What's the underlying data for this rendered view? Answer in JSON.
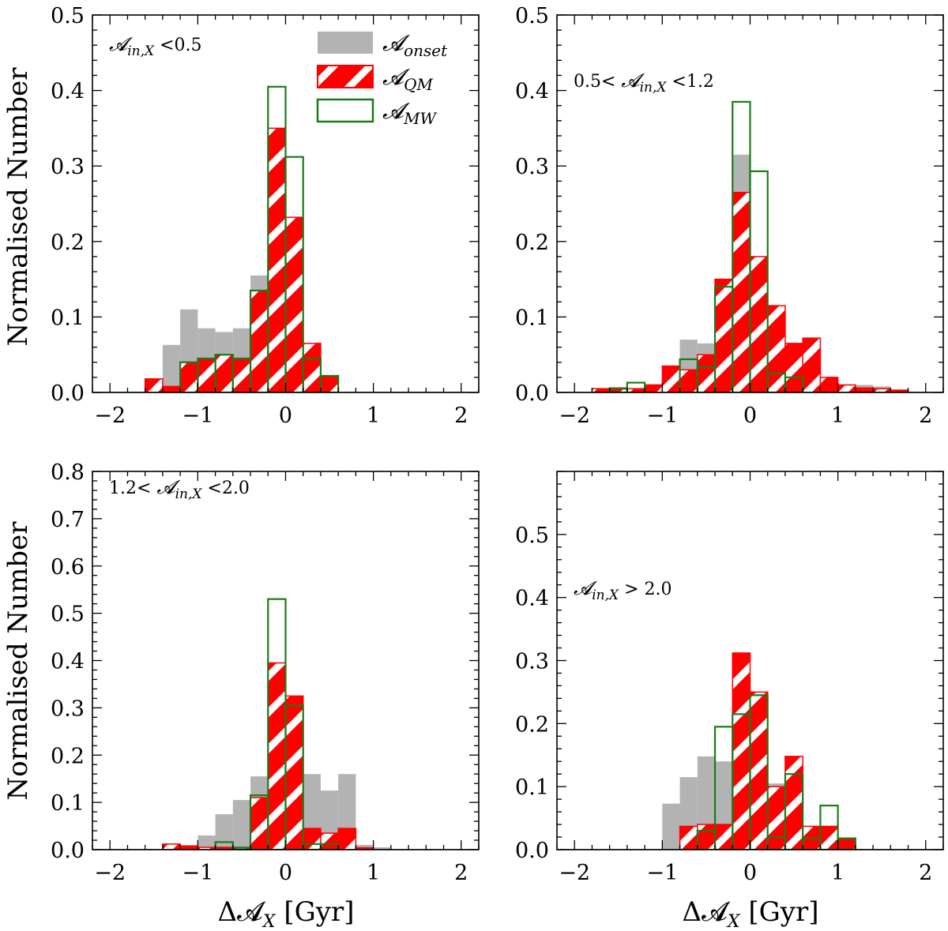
{
  "figure": {
    "ylabel": "Normalised Number",
    "xlabel": "ΔA_X [Gyr]",
    "xlabel_main": "Δ𝓐",
    "xlabel_sub": "X",
    "xlabel_unit": " [Gyr]"
  },
  "legend": {
    "entries": [
      {
        "key": "onset",
        "base": "𝓐",
        "sub": "onset",
        "color": "#b3b3b3"
      },
      {
        "key": "qm",
        "base": "𝓐",
        "sub": "QM",
        "color": "#ff0000"
      },
      {
        "key": "mw",
        "base": "𝓐",
        "sub": "MW",
        "color": "#1a7a1a"
      }
    ]
  },
  "colors": {
    "onset": "#b3b3b3",
    "qm": "#ff0000",
    "mw": "#1a7a1a"
  },
  "chart_data": [
    {
      "type": "histogram",
      "panel": "top-left",
      "annotation": "𝓐in,X <0.5",
      "annotation_parts": {
        "pre": "",
        "base": "𝓐",
        "sub": "in,X",
        "post": " <0.5"
      },
      "xlim": [
        -2.2,
        2.2
      ],
      "ylim": [
        0,
        0.5
      ],
      "xticks": [
        -2,
        -1,
        0,
        1,
        2
      ],
      "yticks": [
        0.0,
        0.1,
        0.2,
        0.3,
        0.4,
        0.5
      ],
      "bins": [
        -1.6,
        -1.4,
        -1.2,
        -1.0,
        -0.8,
        -0.6,
        -0.4,
        -0.2,
        0.0,
        0.2,
        0.4,
        0.6
      ],
      "series": [
        {
          "name": "onset",
          "values": [
            0.005,
            0.063,
            0.11,
            0.085,
            0.08,
            0.085,
            0.155,
            0.34,
            0.23,
            0.06,
            0.02
          ]
        },
        {
          "name": "qm",
          "values": [
            0.018,
            0.008,
            0.04,
            0.045,
            0.05,
            0.045,
            0.135,
            0.35,
            0.232,
            0.065,
            0.022
          ]
        },
        {
          "name": "mw",
          "values": [
            0.0,
            0.0,
            0.04,
            0.045,
            0.05,
            0.045,
            0.135,
            0.405,
            0.312,
            0.045,
            0.022
          ]
        }
      ]
    },
    {
      "type": "histogram",
      "panel": "top-right",
      "annotation": "0.5< 𝓐in,X <1.2",
      "annotation_parts": {
        "pre": "0.5< ",
        "base": "𝓐",
        "sub": "in,X",
        "post": " <1.2"
      },
      "xlim": [
        -2.2,
        2.2
      ],
      "ylim": [
        0,
        0.5
      ],
      "xticks": [
        -2,
        -1,
        0,
        1,
        2
      ],
      "yticks": [
        0.0,
        0.1,
        0.2,
        0.3,
        0.4,
        0.5
      ],
      "bins": [
        -2.0,
        -1.8,
        -1.6,
        -1.4,
        -1.2,
        -1.0,
        -0.8,
        -0.6,
        -0.4,
        -0.2,
        0.0,
        0.2,
        0.4,
        0.6,
        0.8,
        1.0,
        1.2,
        1.4,
        1.6,
        1.8,
        2.0
      ],
      "series": [
        {
          "name": "onset",
          "values": [
            0.0,
            0.004,
            0.004,
            0.004,
            0.008,
            0.025,
            0.07,
            0.065,
            0.1,
            0.315,
            0.095,
            0.075,
            0.055,
            0.06,
            0.018,
            0.01,
            0.01,
            0.008,
            0.004,
            0.0
          ]
        },
        {
          "name": "qm",
          "values": [
            0.0,
            0.005,
            0.006,
            0.005,
            0.01,
            0.035,
            0.03,
            0.05,
            0.15,
            0.265,
            0.18,
            0.115,
            0.065,
            0.072,
            0.02,
            0.01,
            0.006,
            0.005,
            0.003,
            0.0
          ]
        },
        {
          "name": "mw",
          "values": [
            0.0,
            0.0,
            0.005,
            0.013,
            0.0,
            0.0,
            0.044,
            0.034,
            0.14,
            0.385,
            0.293,
            0.025,
            0.02,
            0.0,
            0.0,
            0.0,
            0.0,
            0.0,
            0.0,
            0.0
          ]
        }
      ]
    },
    {
      "type": "histogram",
      "panel": "bottom-left",
      "annotation": "1.2< 𝓐in,X <2.0",
      "annotation_parts": {
        "pre": "1.2< ",
        "base": "𝓐",
        "sub": "in,X",
        "post": " <2.0"
      },
      "xlim": [
        -2.2,
        2.2
      ],
      "ylim": [
        0,
        0.8
      ],
      "xticks": [
        -2,
        -1,
        0,
        1,
        2
      ],
      "yticks": [
        0.0,
        0.1,
        0.2,
        0.3,
        0.4,
        0.5,
        0.6,
        0.7,
        0.8
      ],
      "bins": [
        -1.4,
        -1.2,
        -1.0,
        -0.8,
        -0.6,
        -0.4,
        -0.2,
        0.0,
        0.2,
        0.4,
        0.6,
        0.8,
        1.0,
        1.2
      ],
      "series": [
        {
          "name": "onset",
          "values": [
            0.005,
            0.008,
            0.03,
            0.075,
            0.105,
            0.155,
            0.165,
            0.145,
            0.16,
            0.125,
            0.16,
            0.01,
            0.005
          ]
        },
        {
          "name": "qm",
          "values": [
            0.012,
            0.008,
            0.005,
            0.005,
            0.005,
            0.11,
            0.395,
            0.325,
            0.045,
            0.035,
            0.045,
            0.004,
            0.0
          ]
        },
        {
          "name": "mw",
          "values": [
            0.0,
            0.0,
            0.0,
            0.016,
            0.004,
            0.115,
            0.53,
            0.305,
            0.012,
            0.012,
            0.0,
            0.0,
            0.0
          ]
        }
      ]
    },
    {
      "type": "histogram",
      "panel": "bottom-right",
      "annotation": "𝓐in,X > 2.0",
      "annotation_parts": {
        "pre": "",
        "base": "𝓐",
        "sub": "in,X",
        "post": " > 2.0"
      },
      "xlim": [
        -2.2,
        2.2
      ],
      "ylim": [
        0,
        0.6
      ],
      "xticks": [
        -2,
        -1,
        0,
        1,
        2
      ],
      "yticks": [
        0.0,
        0.1,
        0.2,
        0.3,
        0.4,
        0.5
      ],
      "bins": [
        -1.0,
        -0.8,
        -0.6,
        -0.4,
        -0.2,
        0.0,
        0.2,
        0.4,
        0.6,
        0.8,
        1.0,
        1.2
      ],
      "series": [
        {
          "name": "onset",
          "values": [
            0.073,
            0.115,
            0.148,
            0.14,
            0.2,
            0.145,
            0.105,
            0.09,
            0.03,
            0.02,
            0.015
          ]
        },
        {
          "name": "qm",
          "values": [
            0.0,
            0.037,
            0.04,
            0.04,
            0.312,
            0.25,
            0.1,
            0.148,
            0.037,
            0.037,
            0.018
          ]
        },
        {
          "name": "mw",
          "values": [
            0.0,
            0.0,
            0.03,
            0.195,
            0.215,
            0.245,
            0.02,
            0.12,
            0.018,
            0.07,
            0.018
          ]
        }
      ]
    }
  ]
}
